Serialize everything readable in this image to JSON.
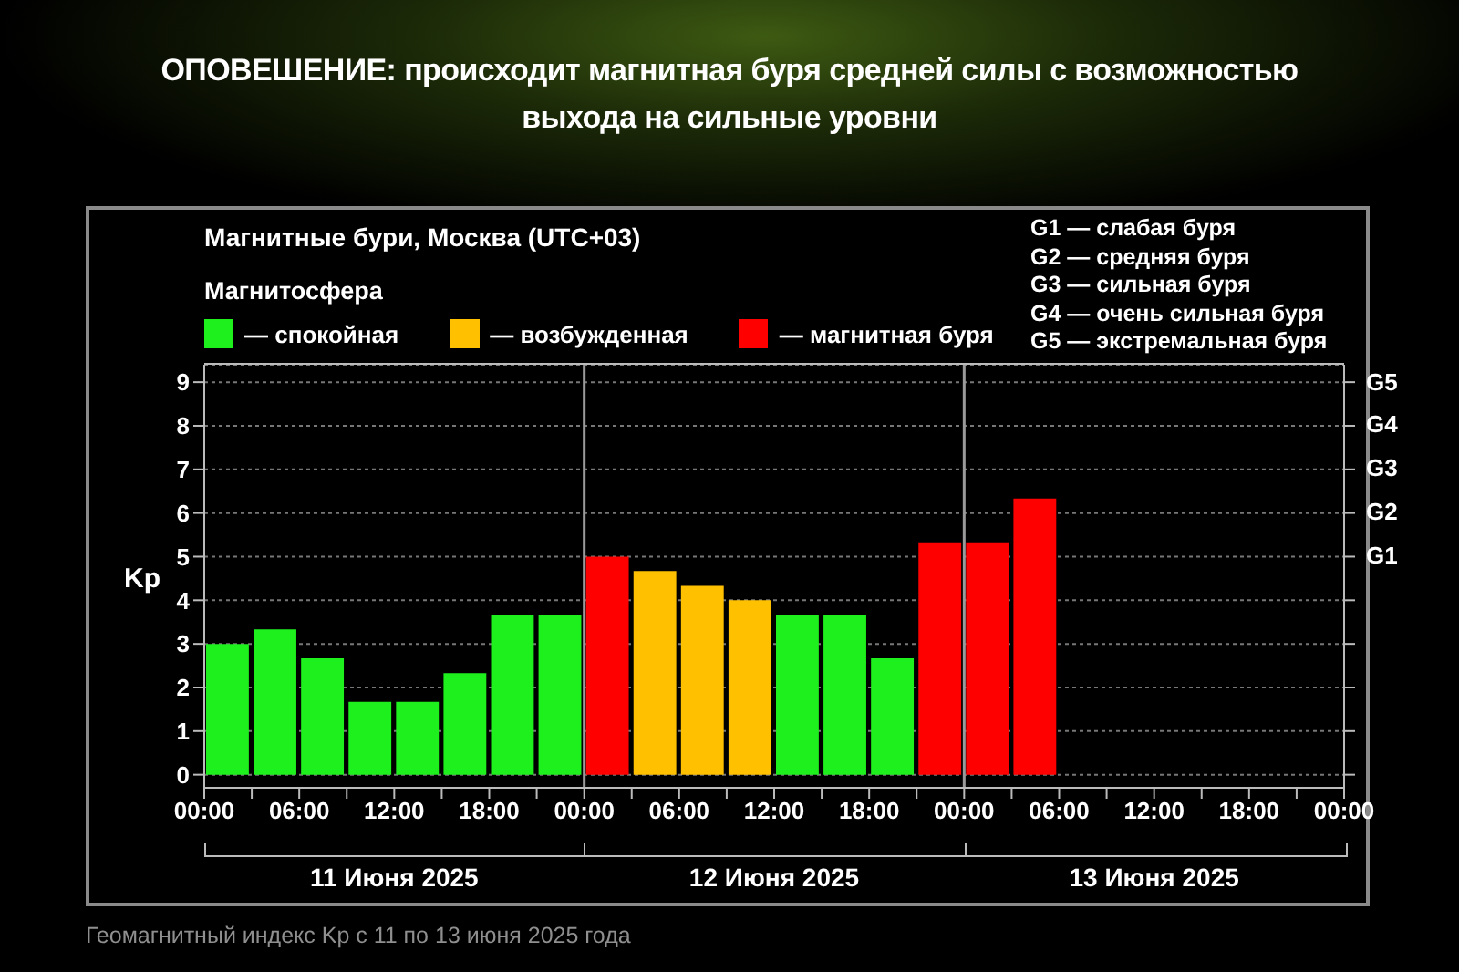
{
  "chart_data": {
    "type": "bar",
    "title": "ОПОВЕШЕНИЕ: происходит магнитная буря средней силы с возможностью выхода на сильные уровни",
    "subtitle": "Магнитные бури, Москва (UTC+03)",
    "legend_title": "Магнитосфера",
    "ylabel": "Kp",
    "x": [
      "2025-06-11T01:30",
      "2025-06-11T04:30",
      "2025-06-11T07:30",
      "2025-06-11T10:30",
      "2025-06-11T13:30",
      "2025-06-11T16:30",
      "2025-06-11T19:30",
      "2025-06-11T22:30",
      "2025-06-12T01:30",
      "2025-06-12T04:30",
      "2025-06-12T07:30",
      "2025-06-12T10:30",
      "2025-06-12T13:30",
      "2025-06-12T16:30",
      "2025-06-12T19:30",
      "2025-06-12T22:30",
      "2025-06-13T01:30",
      "2025-06-13T04:30"
    ],
    "series": [
      {
        "name": "— спокойная",
        "color": "#1ef01e",
        "values": [
          3,
          3.33,
          2.67,
          1.67,
          1.67,
          2.33,
          3.67,
          3.67,
          null,
          null,
          null,
          null,
          3.67,
          3.67,
          2.67,
          null,
          null,
          null
        ]
      },
      {
        "name": "— возбужденная",
        "color": "#ffc000",
        "values": [
          null,
          null,
          null,
          null,
          null,
          null,
          null,
          null,
          null,
          4.67,
          4.33,
          4,
          null,
          null,
          null,
          null,
          null,
          null
        ]
      },
      {
        "name": "— магнитная буря",
        "color": "#ff0000",
        "values": [
          null,
          null,
          null,
          null,
          null,
          null,
          null,
          null,
          5,
          null,
          null,
          null,
          null,
          null,
          null,
          5.33,
          5.33,
          6.33
        ]
      }
    ],
    "stacked": true,
    "xlim": [
      "2025-06-11T00:00",
      "2025-06-14T00:00"
    ],
    "xticks": [
      {
        "value": "2025-06-11T00:00",
        "label": "00:00"
      },
      {
        "value": "2025-06-11T03:00",
        "label": null
      },
      {
        "value": "2025-06-11T06:00",
        "label": "06:00"
      },
      {
        "value": "2025-06-11T09:00",
        "label": null
      },
      {
        "value": "2025-06-11T12:00",
        "label": "12:00"
      },
      {
        "value": "2025-06-11T15:00",
        "label": null
      },
      {
        "value": "2025-06-11T18:00",
        "label": "18:00"
      },
      {
        "value": "2025-06-11T21:00",
        "label": null
      },
      {
        "value": "2025-06-12T00:00",
        "label": "00:00"
      },
      {
        "value": "2025-06-12T03:00",
        "label": null
      },
      {
        "value": "2025-06-12T06:00",
        "label": "06:00"
      },
      {
        "value": "2025-06-12T09:00",
        "label": null
      },
      {
        "value": "2025-06-12T12:00",
        "label": "12:00"
      },
      {
        "value": "2025-06-12T15:00",
        "label": null
      },
      {
        "value": "2025-06-12T18:00",
        "label": "18:00"
      },
      {
        "value": "2025-06-12T21:00",
        "label": null
      },
      {
        "value": "2025-06-13T00:00",
        "label": "00:00"
      },
      {
        "value": "2025-06-13T03:00",
        "label": null
      },
      {
        "value": "2025-06-13T06:00",
        "label": "06:00"
      },
      {
        "value": "2025-06-13T09:00",
        "label": null
      },
      {
        "value": "2025-06-13T12:00",
        "label": "12:00"
      },
      {
        "value": "2025-06-13T15:00",
        "label": null
      },
      {
        "value": "2025-06-13T18:00",
        "label": "18:00"
      },
      {
        "value": "2025-06-13T21:00",
        "label": null
      },
      {
        "value": "2025-06-14T00:00",
        "label": "00:00"
      }
    ],
    "ylim": [
      -0.3,
      9.4
    ],
    "yticks": [
      0,
      1,
      2,
      3,
      4,
      5,
      6,
      7,
      8,
      9
    ],
    "ref_lines": [
      {
        "axis": "x",
        "value": "2025-06-12T00:00",
        "color": "#9a9a9a"
      },
      {
        "axis": "x",
        "value": "2025-06-13T00:00",
        "color": "#9a9a9a"
      }
    ],
    "grid": "y",
    "legend": "top left",
    "annotations": [
      "G1 — слабая буря",
      "G2 — средняя буря",
      "G3 — сильная буря",
      "G4 — очень сильная буря",
      "G5 — экстремальная буря",
      "11 Июня 2025",
      "12 Июня 2025",
      "13 Июня 2025",
      "Геомагнитный индекс Kp с 11 по 13 июня 2025 года",
      "G1",
      "G2",
      "G3",
      "G4",
      "G5"
    ]
  }
}
